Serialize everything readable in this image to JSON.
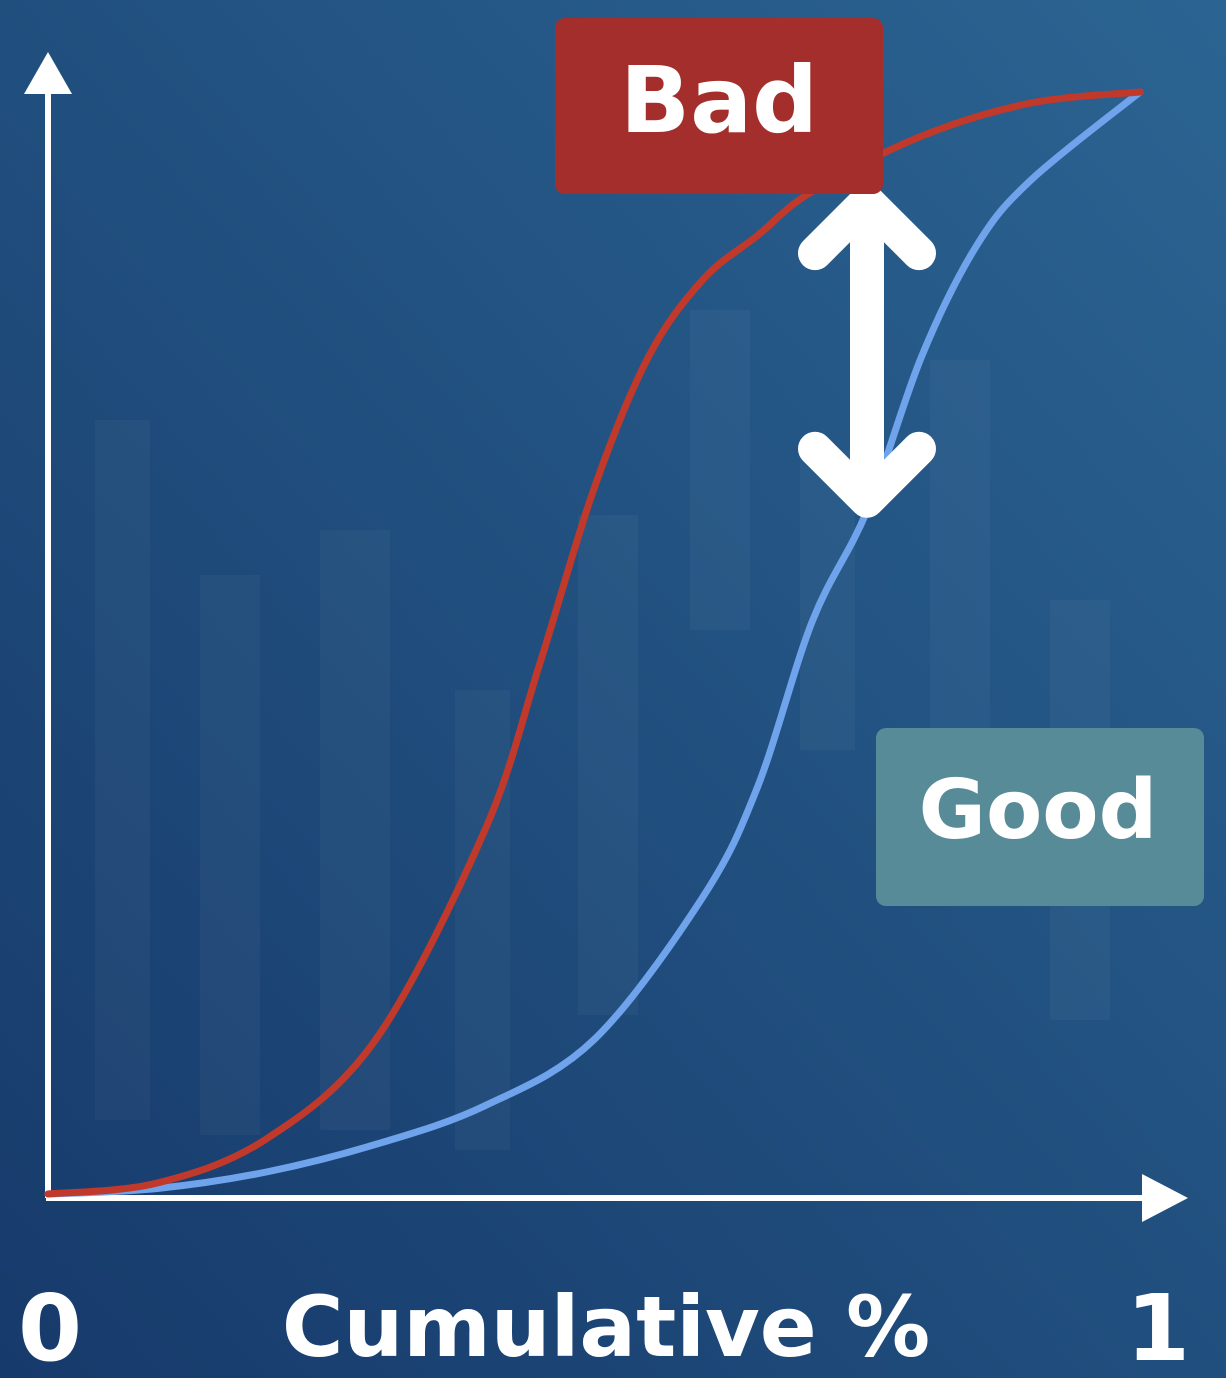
{
  "chart_data": {
    "type": "line",
    "title": "",
    "xlabel": "Cumulative %",
    "ylabel": "",
    "x_ticks": [
      "0",
      "1"
    ],
    "xlim": [
      0,
      1
    ],
    "ylim": [
      0,
      1
    ],
    "grid": false,
    "legend": "inline",
    "series": [
      {
        "name": "Bad",
        "color": "#c0392b",
        "x": [
          0,
          0.1,
          0.2,
          0.3,
          0.4,
          0.45,
          0.5,
          0.55,
          0.6,
          0.65,
          0.7,
          0.8,
          0.9,
          1
        ],
        "y": [
          0,
          0.01,
          0.05,
          0.14,
          0.33,
          0.48,
          0.64,
          0.76,
          0.83,
          0.87,
          0.91,
          0.96,
          0.99,
          1
        ]
      },
      {
        "name": "Good",
        "color": "#6fa3ec",
        "x": [
          0,
          0.1,
          0.2,
          0.3,
          0.4,
          0.5,
          0.6,
          0.65,
          0.7,
          0.75,
          0.8,
          0.85,
          0.9,
          1
        ],
        "y": [
          0,
          0.005,
          0.02,
          0.045,
          0.08,
          0.14,
          0.27,
          0.37,
          0.52,
          0.62,
          0.76,
          0.86,
          0.92,
          1
        ]
      }
    ],
    "annotations": [
      {
        "type": "double-arrow",
        "x": 0.75,
        "from": 0.62,
        "to": 0.91,
        "color": "#ffffff"
      }
    ],
    "label_boxes": {
      "bad": {
        "text": "Bad",
        "color": "#a32e2b"
      },
      "good": {
        "text": "Good",
        "color": "#578b97"
      }
    }
  }
}
